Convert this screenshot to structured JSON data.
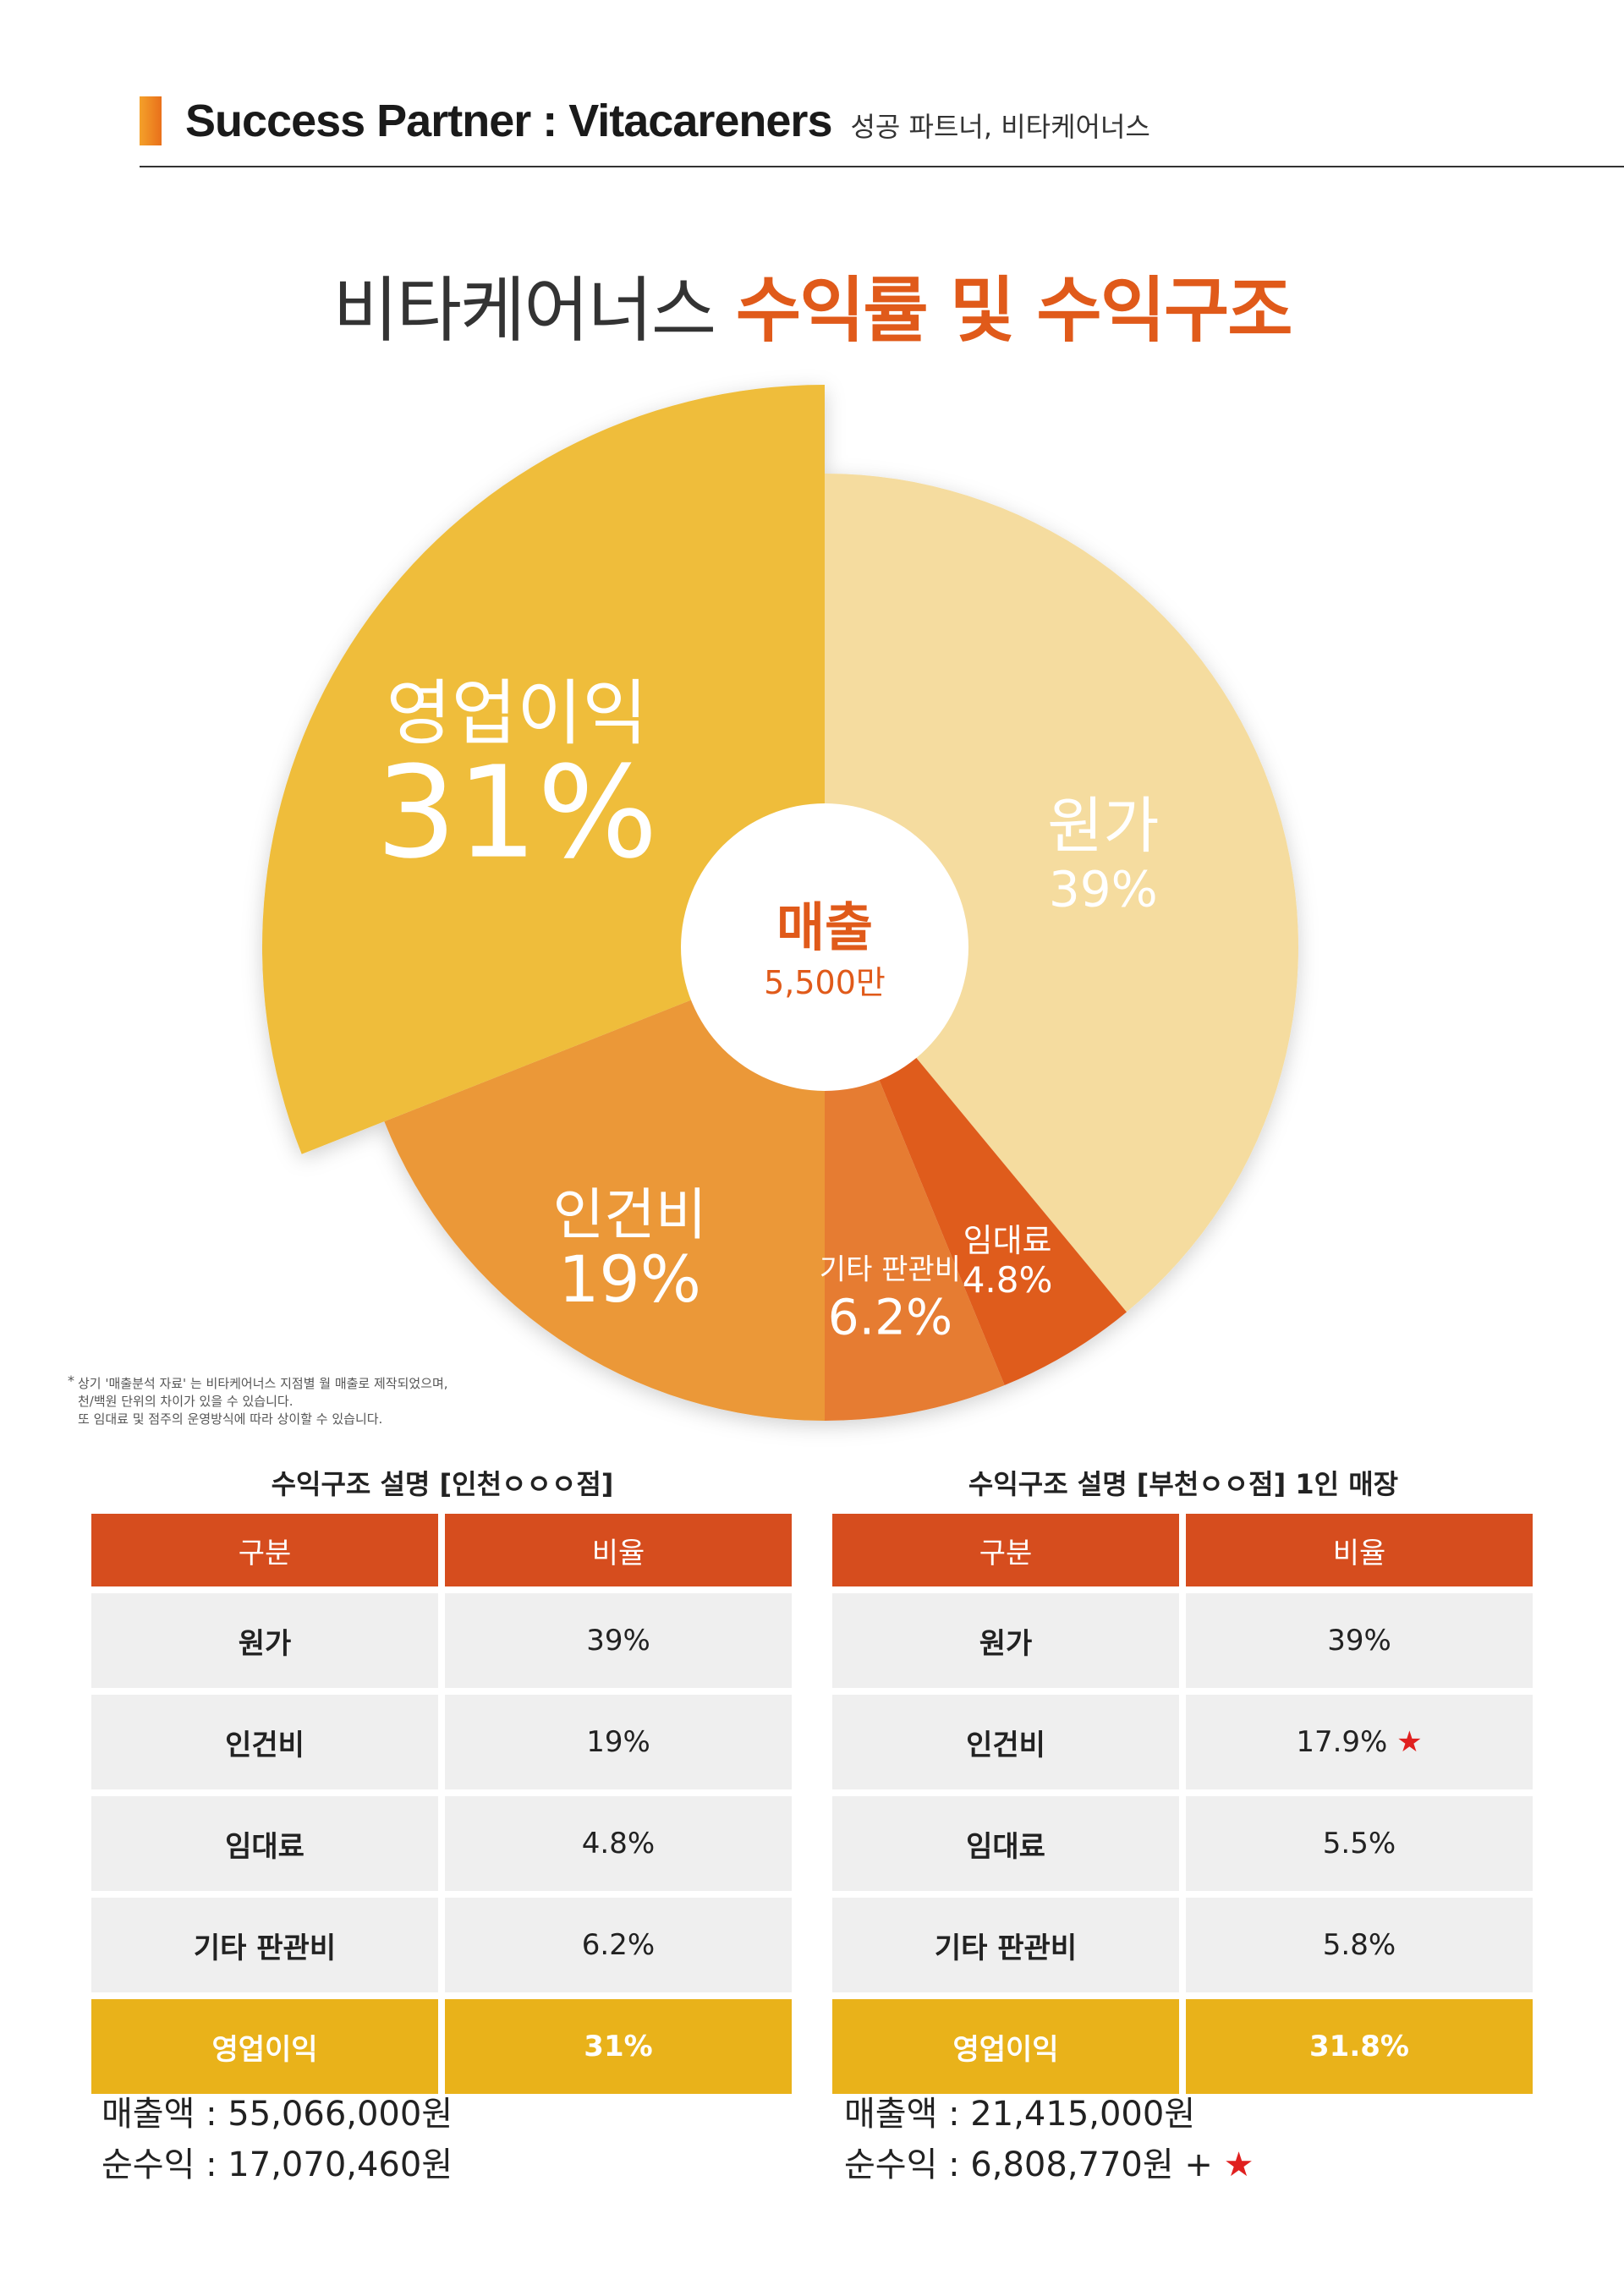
{
  "header": {
    "title": "Success Partner : Vitacareners",
    "subtitle": "성공 파트너, 비타케어너스"
  },
  "main_title": {
    "part1": "비타케어너스",
    "part2": "수익률 및 수익구조"
  },
  "chart_data": {
    "type": "pie",
    "center_label": "매출",
    "center_value": "5,500만",
    "slices": [
      {
        "label": "원가",
        "value": 39,
        "value_text": "39%",
        "color": "#f5dc9f"
      },
      {
        "label": "임대료",
        "value": 4.8,
        "value_text": "4.8%",
        "color": "#df5c1d"
      },
      {
        "label": "기타 판관비",
        "value": 6.2,
        "value_text": "6.2%",
        "color": "#e67c32"
      },
      {
        "label": "인건비",
        "value": 19,
        "value_text": "19%",
        "color": "#eb9837"
      },
      {
        "label": "영업이익",
        "value": 31,
        "value_text": "31%",
        "color": "#efbd3a",
        "exploded": true
      }
    ]
  },
  "footnote": [
    "상기 '매출분석 자료' 는 비타케어너스 지점별 월 매출로 제작되었으며,",
    "천/백원 단위의 차이가 있을 수 있습니다.",
    "또 임대료 및 점주의 운영방식에 따라 상이할 수 있습니다."
  ],
  "footnote_mark": "*",
  "tables": [
    {
      "caption": "수익구조 설명 [인천ㅇㅇㅇ점]",
      "headers": [
        "구분",
        "비율"
      ],
      "rows": [
        [
          "원가",
          "39%"
        ],
        [
          "인건비",
          "19%"
        ],
        [
          "임대료",
          "4.8%"
        ],
        [
          "기타 판관비",
          "6.2%"
        ]
      ],
      "profit_row": [
        "영업이익",
        "31%"
      ],
      "revenue": "매출액 : 55,066,000원",
      "net_profit": "순수익 : 17,070,460원"
    },
    {
      "caption": "수익구조 설명 [부천ㅇㅇ점] 1인 매장",
      "headers": [
        "구분",
        "비율"
      ],
      "rows": [
        [
          "원가",
          "39%"
        ],
        [
          "인건비",
          "17.9%"
        ],
        [
          "임대료",
          "5.5%"
        ],
        [
          "기타 판관비",
          "5.8%"
        ]
      ],
      "profit_row": [
        "영업이익",
        "31.8%"
      ],
      "revenue": "매출액 : 21,415,000원",
      "net_profit": "순수익 : 6,808,770원 +"
    }
  ],
  "star_symbol": "★",
  "colors": {
    "accent": "#e05a1a",
    "table_header": "#d64d1e",
    "profit_row": "#e9b21a",
    "star": "#e0201f"
  }
}
